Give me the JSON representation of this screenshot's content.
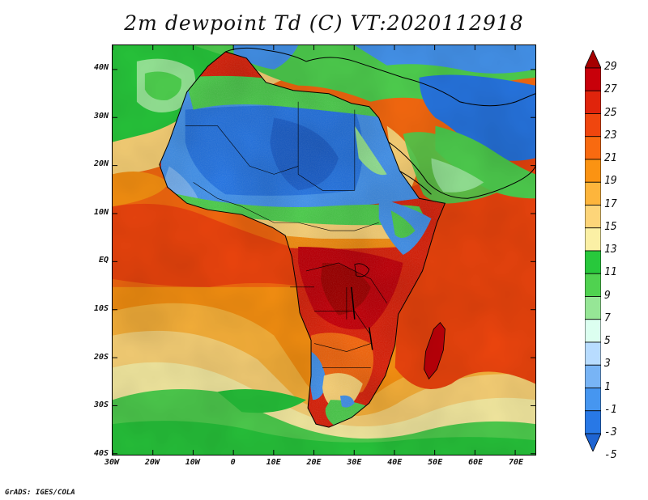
{
  "title": "2m dewpoint Td (C) VT:2020112918",
  "credit": "GrADS: IGES/COLA",
  "lat_labels": [
    "40N",
    "30N",
    "20N",
    "10N",
    "EQ",
    "10S",
    "20S",
    "30S",
    "40S"
  ],
  "lon_labels": [
    "30W",
    "20W",
    "10W",
    "0",
    "10E",
    "20E",
    "30E",
    "40E",
    "50E",
    "60E",
    "70E"
  ],
  "colorbar": {
    "labels": [
      "29",
      "27",
      "25",
      "23",
      "21",
      "19",
      "17",
      "15",
      "13",
      "11",
      "9",
      "7",
      "5",
      "3",
      "1",
      "-1",
      "-3",
      "-5"
    ],
    "colors": [
      "#a50000",
      "#c8000a",
      "#e0240c",
      "#f0460e",
      "#f86a10",
      "#fb9312",
      "#fdb53c",
      "#fdd579",
      "#fbf0a5",
      "#28c83c",
      "#50d250",
      "#96e696",
      "#dcfff0",
      "#b8dcff",
      "#78b4f5",
      "#4696f0",
      "#2878e6",
      "#1e64d2"
    ]
  },
  "region": {
    "lon_min": -30,
    "lon_max": 75,
    "lat_min": -40,
    "lat_max": 45
  }
}
